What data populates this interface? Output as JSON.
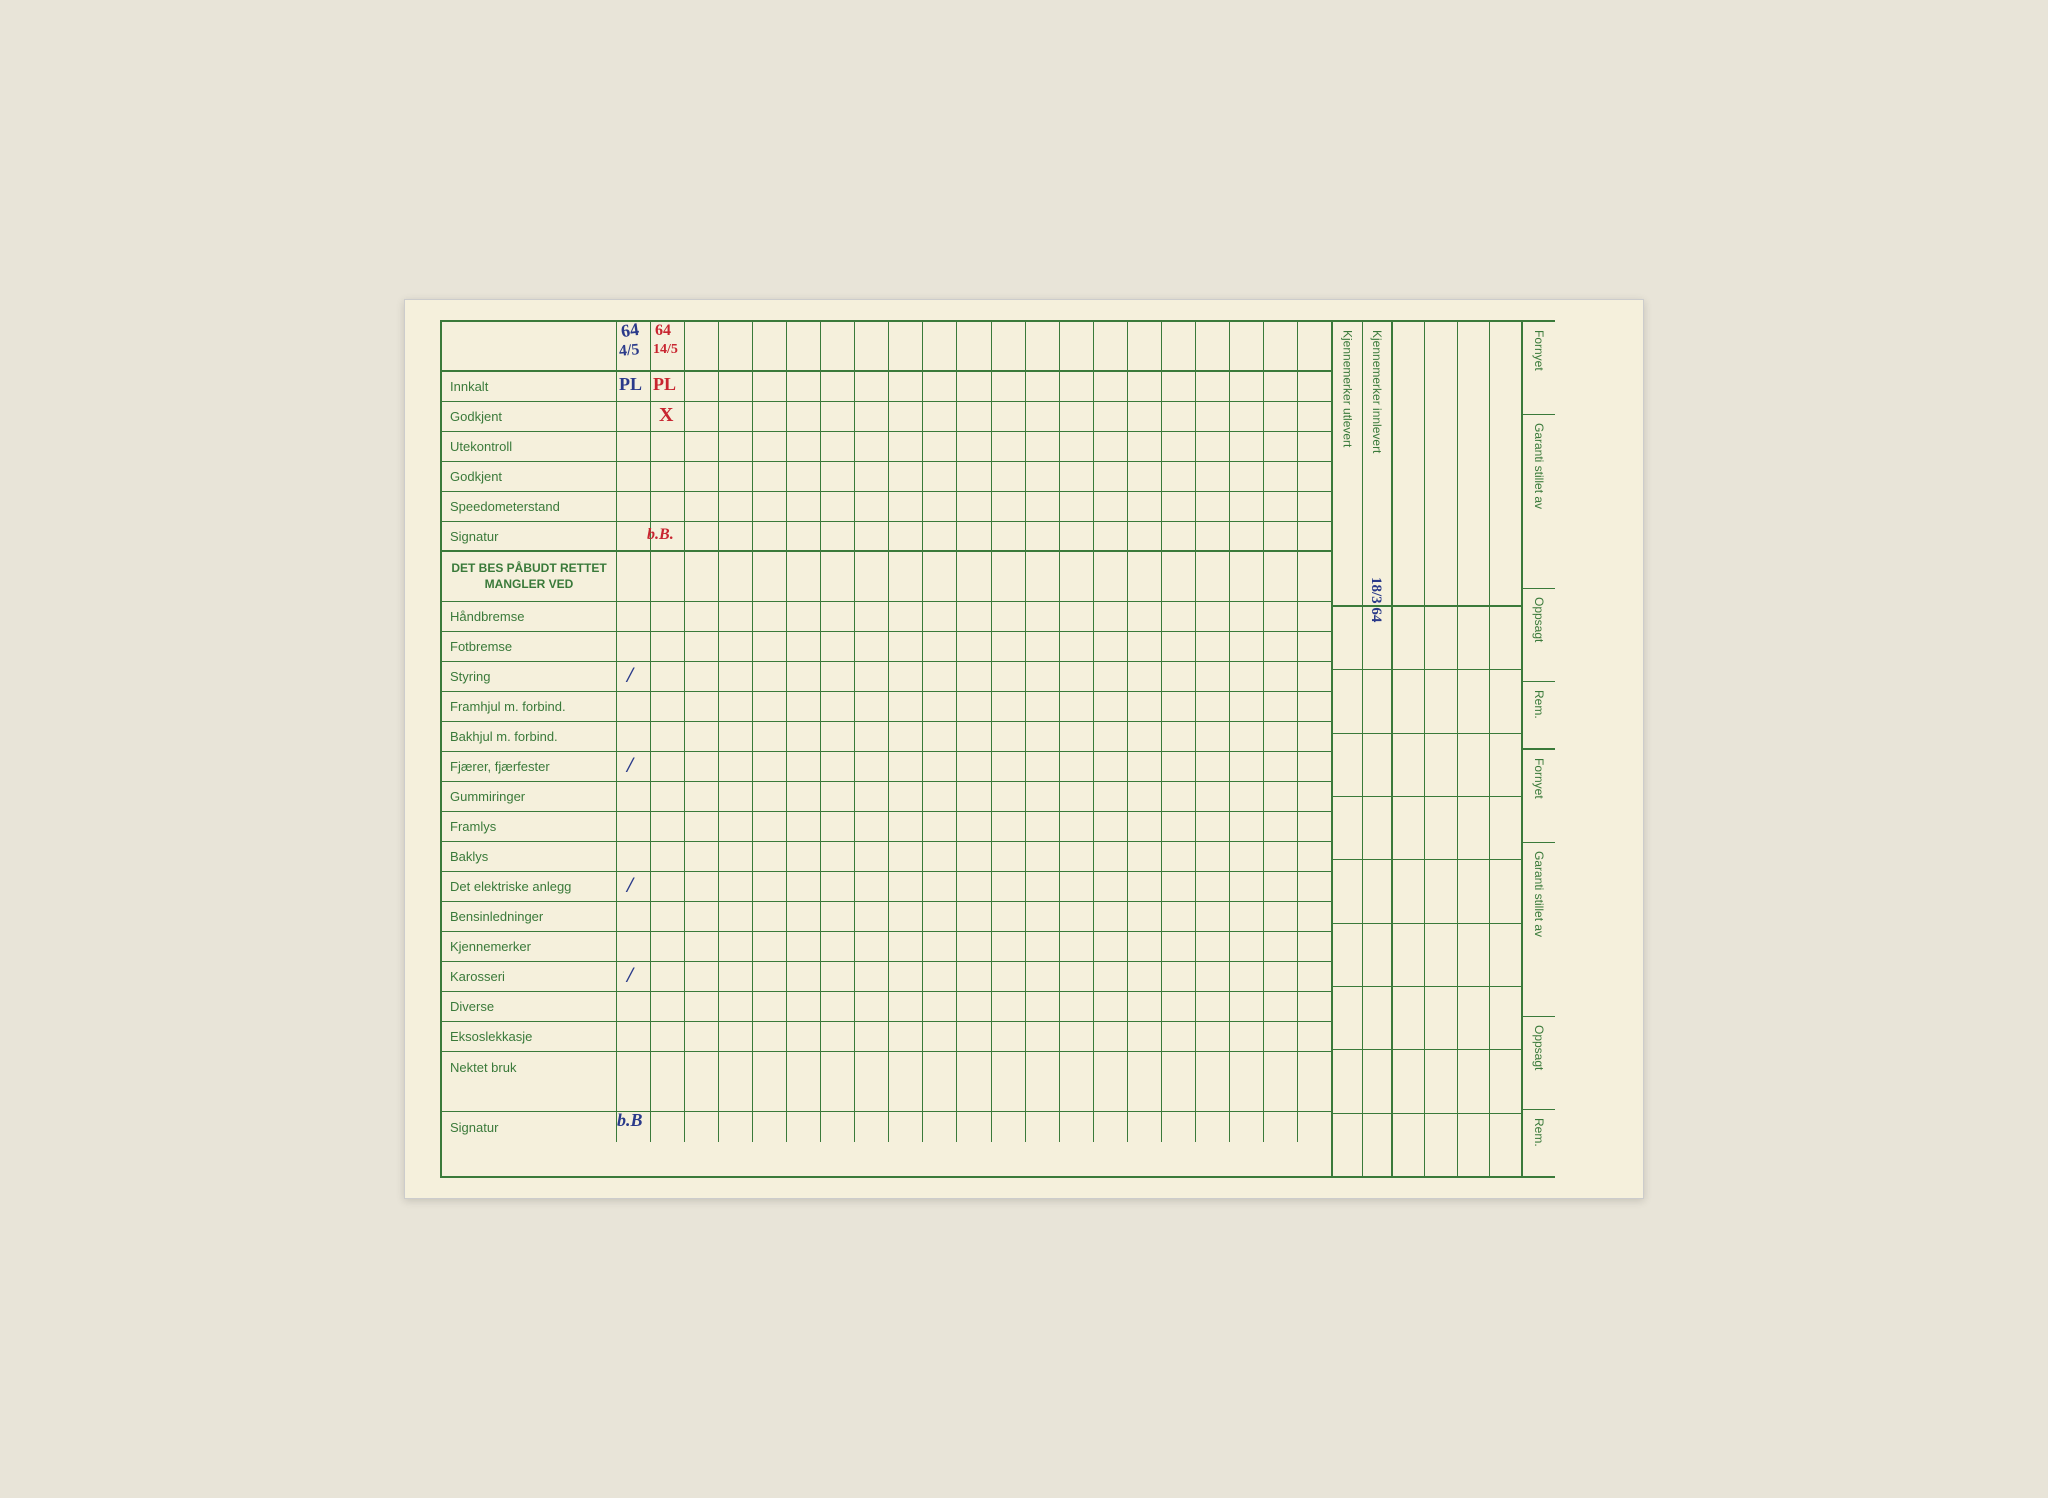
{
  "colors": {
    "paper": "#f5f0dc",
    "grid": "#3a7a3a",
    "text": "#3a7a3a",
    "blue_ink": "#2a3a8a",
    "red_ink": "#c82530"
  },
  "main": {
    "rows": [
      "Innkalt",
      "Godkjent",
      "Utekontroll",
      "Godkjent",
      "Speedometerstand",
      "Signatur"
    ],
    "section_header_line1": "DET BES PÅBUDT RETTET",
    "section_header_line2": "MANGLER VED",
    "defect_rows": [
      "Håndbremse",
      "Fotbremse",
      "Styring",
      "Framhjul m. forbind.",
      "Bakhjul m. forbind.",
      "Fjærer, fjærfester",
      "Gummiringer",
      "Framlys",
      "Baklys",
      "Det elektriske anlegg",
      "Bensinledninger",
      "Kjennemerker",
      "Karosseri",
      "Diverse",
      "Eksoslekkasje",
      "Nektet bruk"
    ],
    "footer_row": "Signatur",
    "grid_columns": 21
  },
  "handwriting": {
    "header_col1_blue": "64",
    "header_col1_blue2": "4/5",
    "header_col2_red": "64",
    "header_col2_red2": "14/5",
    "innkalt_col1_blue": "PL",
    "innkalt_col2_red": "PL",
    "godkjent_col2_red": "X",
    "signatur_col2_red": "b.B.",
    "styring_col1": "/",
    "fjaerer_col1": "/",
    "elektriske_col1": "/",
    "karosseri_col1": "/",
    "footer_signatur_blue": "b.B",
    "kj_innlevert_blue": "18/3 64"
  },
  "side": {
    "kj_utlevert": "Kjennemerker utlevert",
    "kj_innlevert": "Kjennemerker innlevert",
    "right_labels": [
      "Fornyet",
      "Garanti stillet av",
      "Oppsagt",
      "Rem.",
      "Fornyet",
      "Garanti stillet av",
      "Oppsagt",
      "Rem."
    ]
  }
}
